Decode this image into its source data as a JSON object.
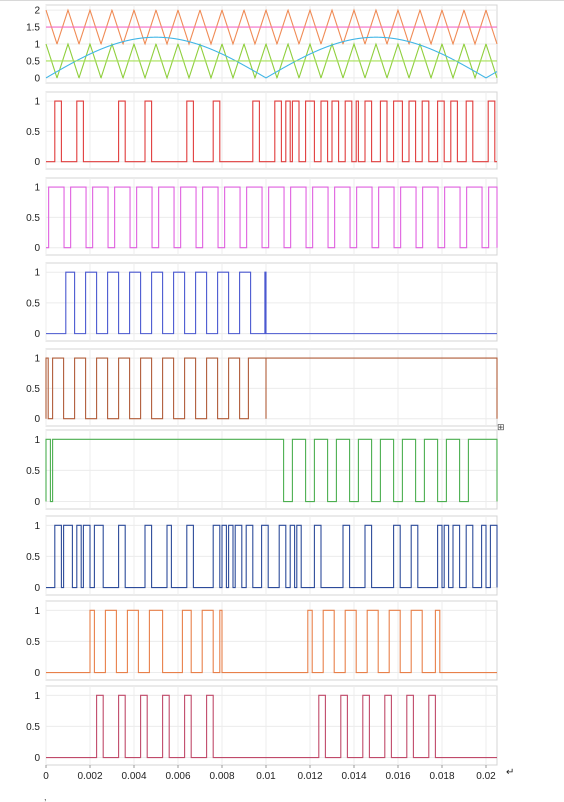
{
  "page_marks": {
    "return_mark": "↵",
    "anchor_mark": "⊞",
    "dot_mark": ","
  },
  "chart_data": [
    {
      "type": "line",
      "title": "",
      "xlabel": "",
      "ylabel": "",
      "xlim": [
        0,
        0.0205
      ],
      "ylim": [
        -0.15,
        2.15
      ],
      "yticks": [
        0,
        0.5,
        1,
        1.5,
        2
      ],
      "ytick_labels": [
        "0",
        "0.5",
        "1",
        "1.5",
        "2"
      ],
      "grid": true,
      "series": [
        {
          "kind": "triangle",
          "period": 0.001,
          "min": 1,
          "max": 2,
          "phase": 0.5,
          "color": "#f08b55"
        },
        {
          "kind": "triangle",
          "period": 0.001,
          "min": 0,
          "max": 1,
          "phase": 0.5,
          "color": "#8fcf3c"
        },
        {
          "kind": "abs_sine",
          "period": 0.02,
          "amplitude": 1.2,
          "color": "#41b6e6"
        },
        {
          "kind": "constant",
          "value": 1.5,
          "color": "#f26dc6"
        },
        {
          "kind": "constant",
          "value": 0.5,
          "color": "#a7e05a"
        }
      ]
    },
    {
      "type": "line",
      "ylim": [
        -0.12,
        1.15
      ],
      "yticks": [
        0,
        0.5,
        1
      ],
      "ytick_labels": [
        "0",
        "0.5",
        "1"
      ],
      "grid": true,
      "series": [
        {
          "color": "#e03c3c",
          "kind": "pulses",
          "pulses": [
            [
              0.0004,
              0.0007
            ],
            [
              0.0014,
              0.0017
            ],
            [
              0.0033,
              0.0036
            ],
            [
              0.0045,
              0.0048
            ],
            [
              0.0064,
              0.0067
            ],
            [
              0.0076,
              0.0079
            ],
            [
              0.0094,
              0.0097
            ],
            [
              0.0104,
              0.0107
            ],
            [
              0.0109,
              0.0111
            ],
            [
              0.0112,
              0.0115
            ],
            [
              0.0118,
              0.0122
            ],
            [
              0.0125,
              0.0128
            ],
            [
              0.013,
              0.0133
            ],
            [
              0.0136,
              0.0139
            ],
            [
              0.0141,
              0.0142
            ],
            [
              0.0145,
              0.0148
            ],
            [
              0.0152,
              0.0155
            ],
            [
              0.0158,
              0.0162
            ],
            [
              0.0165,
              0.0168
            ],
            [
              0.0171,
              0.0174
            ],
            [
              0.0178,
              0.0181
            ],
            [
              0.0184,
              0.0187
            ],
            [
              0.0191,
              0.0194
            ],
            [
              0.0201,
              0.0204
            ]
          ]
        }
      ]
    },
    {
      "type": "line",
      "ylim": [
        -0.12,
        1.15
      ],
      "yticks": [
        0,
        0.5,
        1
      ],
      "ytick_labels": [
        "0",
        "0.5",
        "1"
      ],
      "grid": true,
      "series": [
        {
          "color": "#e060e0",
          "kind": "square",
          "period": 0.001,
          "high_from": 0.12,
          "high_to": 0.82
        }
      ]
    },
    {
      "type": "line",
      "ylim": [
        -0.12,
        1.15
      ],
      "yticks": [
        0,
        0.5,
        1
      ],
      "ytick_labels": [
        "0",
        "0.5",
        "1"
      ],
      "grid": true,
      "series": [
        {
          "color": "#4a58d0",
          "kind": "pulses",
          "pulses": [
            [
              0.0009,
              0.0013
            ],
            [
              0.0018,
              0.0023
            ],
            [
              0.0028,
              0.0033
            ],
            [
              0.0038,
              0.0043
            ],
            [
              0.0048,
              0.0053
            ],
            [
              0.0058,
              0.0063
            ],
            [
              0.0068,
              0.0073
            ],
            [
              0.0078,
              0.0083
            ],
            [
              0.0088,
              0.0093
            ],
            [
              0.00995,
              0.01
            ]
          ]
        }
      ]
    },
    {
      "type": "line",
      "ylim": [
        -0.12,
        1.15
      ],
      "yticks": [
        0,
        0.5,
        1
      ],
      "ytick_labels": [
        "0",
        "0.5",
        "1"
      ],
      "grid": true,
      "series": [
        {
          "color": "#b15d3a",
          "kind": "pulses",
          "pulses": [
            [
              -0.0001,
              0.0001
            ],
            [
              0.0003,
              0.0008
            ],
            [
              0.0013,
              0.0018
            ],
            [
              0.0023,
              0.0028
            ],
            [
              0.0033,
              0.0038
            ],
            [
              0.0043,
              0.0048
            ],
            [
              0.0053,
              0.0058
            ],
            [
              0.0063,
              0.0068
            ],
            [
              0.0073,
              0.0078
            ],
            [
              0.0083,
              0.0088
            ],
            [
              0.0092,
              0.01
            ],
            [
              0.01,
              0.0205
            ]
          ]
        }
      ]
    },
    {
      "type": "line",
      "ylim": [
        -0.12,
        1.15
      ],
      "yticks": [
        0,
        0.5,
        1
      ],
      "ytick_labels": [
        "0",
        "0.5",
        "1"
      ],
      "grid": true,
      "series": [
        {
          "color": "#4caf50",
          "kind": "pulses",
          "pulses": [
            [
              -0.0001,
              0.0002
            ],
            [
              0.0003,
              0.0108
            ],
            [
              0.0112,
              0.0118
            ],
            [
              0.0122,
              0.0128
            ],
            [
              0.0132,
              0.0138
            ],
            [
              0.0142,
              0.0148
            ],
            [
              0.0152,
              0.0158
            ],
            [
              0.0162,
              0.0168
            ],
            [
              0.0172,
              0.0178
            ],
            [
              0.0182,
              0.0188
            ],
            [
              0.0192,
              0.0205
            ]
          ]
        }
      ]
    },
    {
      "type": "line",
      "ylim": [
        -0.12,
        1.15
      ],
      "yticks": [
        0,
        0.5,
        1
      ],
      "ytick_labels": [
        "0",
        "0.5",
        "1"
      ],
      "grid": true,
      "series": [
        {
          "color": "#2d4b9a",
          "kind": "pulses",
          "pulses": [
            [
              0.0004,
              0.0007
            ],
            [
              0.0008,
              0.0012
            ],
            [
              0.0014,
              0.0016
            ],
            [
              0.0017,
              0.002
            ],
            [
              0.0022,
              0.0026
            ],
            [
              0.0033,
              0.0036
            ],
            [
              0.0045,
              0.0048
            ],
            [
              0.0055,
              0.0057
            ],
            [
              0.0064,
              0.0067
            ],
            [
              0.0076,
              0.0079
            ],
            [
              0.008,
              0.0082
            ],
            [
              0.0083,
              0.0085
            ],
            [
              0.0086,
              0.0089
            ],
            [
              0.0091,
              0.0094
            ],
            [
              0.0098,
              0.0101
            ],
            [
              0.0106,
              0.0109
            ],
            [
              0.0111,
              0.0113
            ],
            [
              0.0114,
              0.0116
            ],
            [
              0.0122,
              0.0125
            ],
            [
              0.0135,
              0.0138
            ],
            [
              0.0145,
              0.0148
            ],
            [
              0.0158,
              0.0161
            ],
            [
              0.0166,
              0.0169
            ],
            [
              0.0178,
              0.018
            ],
            [
              0.0181,
              0.0183
            ],
            [
              0.0185,
              0.0188
            ],
            [
              0.0191,
              0.0194
            ],
            [
              0.0198,
              0.02
            ],
            [
              0.0202,
              0.0205
            ]
          ]
        }
      ]
    },
    {
      "type": "line",
      "ylim": [
        -0.12,
        1.15
      ],
      "yticks": [
        0,
        0.5,
        1
      ],
      "ytick_labels": [
        "0",
        "0.5",
        "1"
      ],
      "grid": true,
      "series": [
        {
          "color": "#e8804a",
          "kind": "pulses",
          "pulses": [
            [
              0.002,
              0.0022
            ],
            [
              0.0027,
              0.0032
            ],
            [
              0.0037,
              0.0042
            ],
            [
              0.0047,
              0.0053
            ],
            [
              0.0062,
              0.0066
            ],
            [
              0.0071,
              0.0076
            ],
            [
              0.0079,
              0.008
            ],
            [
              0.0119,
              0.0121
            ],
            [
              0.0126,
              0.0131
            ],
            [
              0.0136,
              0.0141
            ],
            [
              0.0146,
              0.0151
            ],
            [
              0.0156,
              0.0161
            ],
            [
              0.0166,
              0.0171
            ],
            [
              0.0177,
              0.0179
            ]
          ]
        }
      ]
    },
    {
      "type": "line",
      "ylim": [
        -0.12,
        1.15
      ],
      "yticks": [
        0,
        0.5,
        1
      ],
      "ytick_labels": [
        "0",
        "0.5",
        "1"
      ],
      "grid": true,
      "xticks": [
        0,
        0.002,
        0.004,
        0.006,
        0.008,
        0.01,
        0.012,
        0.014,
        0.016,
        0.018,
        0.02
      ],
      "xtick_labels": [
        "0",
        "0.002",
        "0.004",
        "0.006",
        "0.008",
        "0.01",
        "0.012",
        "0.014",
        "0.016",
        "0.018",
        "0.02"
      ],
      "series": [
        {
          "color": "#c04a6a",
          "kind": "pulses",
          "pulses": [
            [
              0.0023,
              0.0026
            ],
            [
              0.0033,
              0.0036
            ],
            [
              0.0043,
              0.0046
            ],
            [
              0.0053,
              0.0056
            ],
            [
              0.0063,
              0.0066
            ],
            [
              0.0073,
              0.0076
            ],
            [
              0.0124,
              0.0127
            ],
            [
              0.0134,
              0.0137
            ],
            [
              0.0144,
              0.0147
            ],
            [
              0.0154,
              0.0157
            ],
            [
              0.0164,
              0.0167
            ],
            [
              0.0174,
              0.0177
            ]
          ]
        }
      ]
    }
  ]
}
